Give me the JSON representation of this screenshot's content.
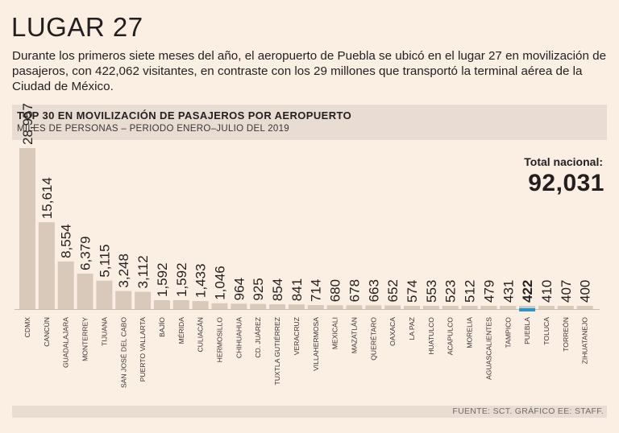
{
  "headline": "LUGAR 27",
  "intro": "Durante los primeros siete meses del año, el aeropuerto de Puebla se ubicó en el lugar 27 en movilización de pasajeros, con 422,062 visitantes, en contraste con los 29 millones que transportó la terminal aérea de la Ciudad de México.",
  "total": {
    "label": "Total nacional:",
    "value": "92,031"
  },
  "source": "FUENTE: SCT. GRÁFICO EE: STAFF.",
  "colors": {
    "bar": "#d9c9bb",
    "highlight": "#1f9ad6",
    "background": "#fbeee2"
  },
  "chart_data": {
    "type": "bar",
    "title": "TOP 30 EN MOVILIZACIÓN DE PASAJEROS POR AEROPUERTO",
    "subtitle": "MILES DE PERSONAS – PERIODO ENERO–JULIO DEL 2019",
    "highlight": "PUEBLA",
    "categories": [
      "CDMX",
      "CANCÚN",
      "GUADALAJARA",
      "MONTERREY",
      "TIJUANA",
      "SAN JOSÉ DEL CABO",
      "PUERTO VALLARTA",
      "BAJÍO",
      "MÉRIDA",
      "CULIACÁN",
      "HERMOSILLO",
      "CHIHUAHUA",
      "CD. JUÁREZ",
      "TUXTLA GUTIÉRREZ",
      "VERACRUZ",
      "VILLAHERMOSA",
      "MEXICALI",
      "MAZATLÁN",
      "QUERÉTARO",
      "OAXACA",
      "LA PAZ",
      "HUATULCO",
      "ACAPULCO",
      "MORELIA",
      "AGUASCALIENTES",
      "TAMPICO",
      "PUEBLA",
      "TOLUCA",
      "TORREÓN",
      "ZIHUATANEJO"
    ],
    "values": [
      28957,
      15614,
      8554,
      6379,
      5115,
      3248,
      3112,
      1592,
      1592,
      1433,
      1046,
      964,
      925,
      854,
      841,
      714,
      680,
      678,
      663,
      652,
      574,
      553,
      523,
      512,
      479,
      431,
      422,
      410,
      407,
      400
    ],
    "value_labels": [
      "28,957",
      "15,614",
      "8,554",
      "6,379",
      "5,115",
      "3,248",
      "3,112",
      "1,592",
      "1,592",
      "1,433",
      "1,046",
      "964",
      "925",
      "854",
      "841",
      "714",
      "680",
      "678",
      "663",
      "652",
      "574",
      "553",
      "523",
      "512",
      "479",
      "431",
      "422",
      "410",
      "407",
      "400"
    ]
  }
}
